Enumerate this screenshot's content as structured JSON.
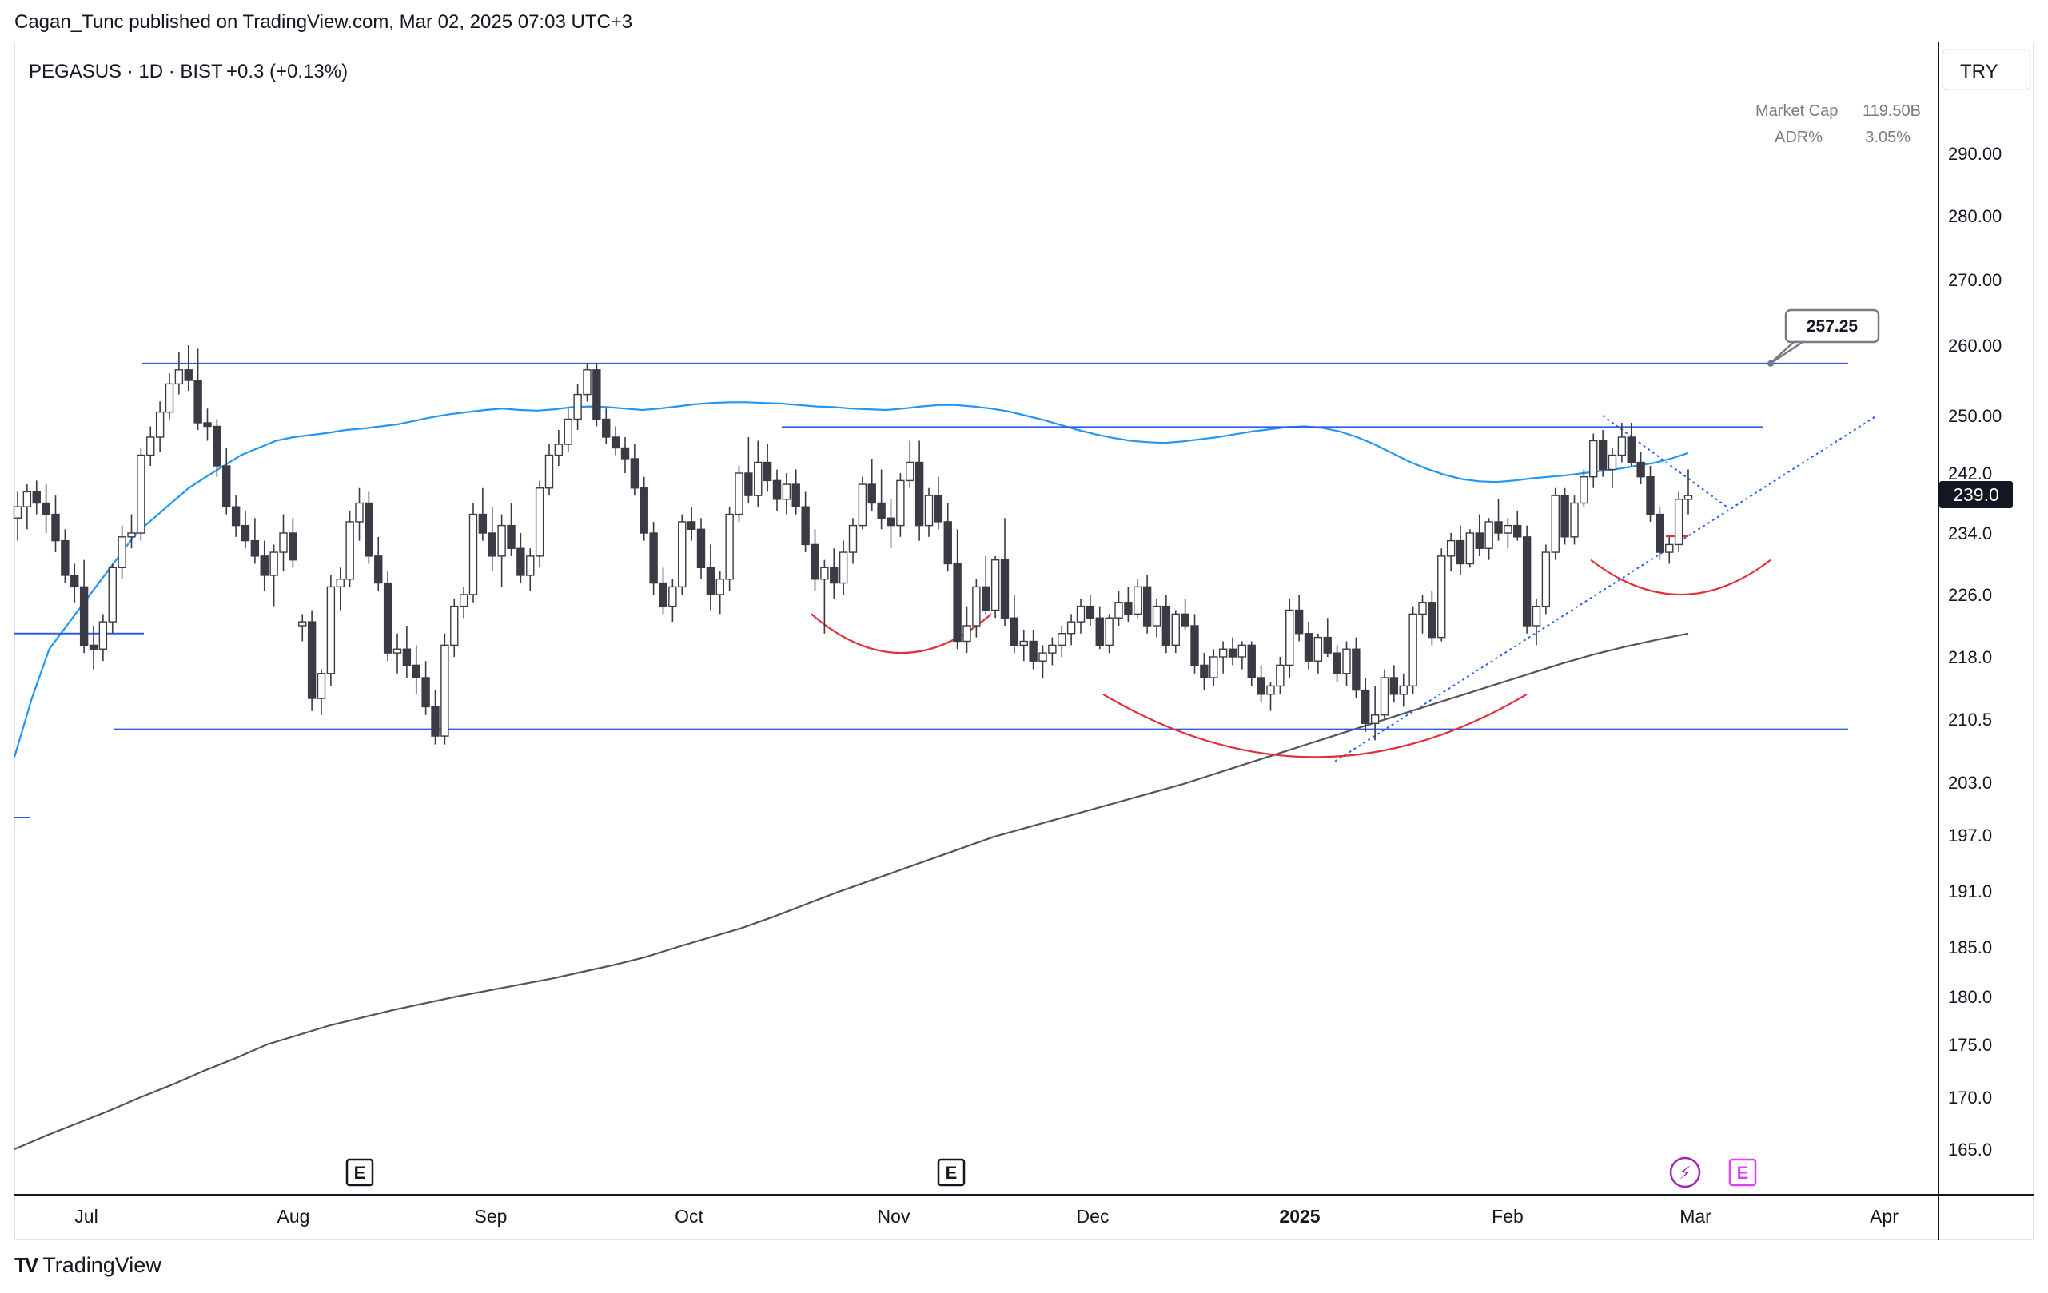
{
  "header": {
    "published_text": "Cagan_Tunc published on TradingView.com, Mar 02, 2025 07:03 UTC+3"
  },
  "footer": {
    "brand": "TradingView",
    "logo_icon": "tradingview-logo-icon"
  },
  "chart_data": {
    "type": "candlestick",
    "title": "PEGASUS · 1D · BIST",
    "change": "+0.3 (+0.13%)",
    "currency": "TRY",
    "info_panel": [
      {
        "label": "Market Cap",
        "value": "119.50B"
      },
      {
        "label": "ADR%",
        "value": "3.05%"
      }
    ],
    "ylim": [
      158,
      306
    ],
    "y_ticks": [
      "165.0",
      "170.0",
      "175.0",
      "180.0",
      "185.0",
      "191.0",
      "197.0",
      "203.0",
      "210.5",
      "218.0",
      "226.0",
      "234.0",
      "242.0",
      "250.00",
      "260.00",
      "270.00",
      "280.00",
      "290.00"
    ],
    "x_ticks": [
      {
        "label": "Jul",
        "bold": false
      },
      {
        "label": "Aug",
        "bold": false
      },
      {
        "label": "Sep",
        "bold": false
      },
      {
        "label": "Oct",
        "bold": false
      },
      {
        "label": "Nov",
        "bold": false
      },
      {
        "label": "Dec",
        "bold": false
      },
      {
        "label": "2025",
        "bold": true
      },
      {
        "label": "Feb",
        "bold": false
      },
      {
        "label": "Mar",
        "bold": false
      },
      {
        "label": "Apr",
        "bold": false
      }
    ],
    "last_price": "239.0",
    "annotation_label": "257.25",
    "colors": {
      "up": "#ffffff",
      "down": "#3b3b45",
      "wick": "#3b3b45",
      "ma_short": "#2196f3",
      "ma_long": "#555555",
      "levels": "#2e5ce6",
      "arcs": "#e0303c",
      "trend": "#2962ff",
      "last_price_bg": "#131722",
      "lightning": "#9c27b0",
      "earnings_future": "#e040fb"
    },
    "horizontal_levels": [
      257.4,
      248.4,
      209.3
    ],
    "event_markers": [
      {
        "label": "E",
        "type": "earnings"
      },
      {
        "label": "E",
        "type": "earnings"
      },
      {
        "label": "⚡",
        "type": "dividend"
      },
      {
        "label": "E",
        "type": "earnings-upcoming"
      }
    ],
    "candles": [
      [
        236.0,
        239.5,
        233.0,
        237.5
      ],
      [
        237.5,
        240.5,
        234.5,
        239.5
      ],
      [
        239.5,
        241.0,
        236.5,
        238.0
      ],
      [
        238.0,
        240.5,
        234.0,
        236.5
      ],
      [
        236.5,
        239.0,
        231.5,
        233.0
      ],
      [
        233.0,
        234.5,
        227.5,
        228.5
      ],
      [
        228.5,
        230.0,
        225.0,
        227.0
      ],
      [
        227.0,
        230.5,
        218.5,
        219.5
      ],
      [
        219.5,
        222.0,
        216.5,
        219.0
      ],
      [
        219.0,
        223.5,
        217.5,
        222.5
      ],
      [
        222.5,
        230.0,
        221.0,
        229.5
      ],
      [
        229.5,
        235.0,
        228.0,
        233.5
      ],
      [
        233.5,
        236.5,
        232.0,
        234.0
      ],
      [
        234.0,
        245.5,
        233.0,
        244.5
      ],
      [
        244.5,
        248.5,
        243.0,
        247.0
      ],
      [
        247.0,
        252.0,
        245.0,
        250.5
      ],
      [
        250.5,
        256.0,
        249.5,
        254.5
      ],
      [
        254.5,
        259.0,
        253.0,
        256.5
      ],
      [
        256.5,
        260.0,
        253.5,
        255.0
      ],
      [
        255.0,
        259.5,
        248.0,
        249.0
      ],
      [
        249.0,
        251.0,
        246.5,
        248.5
      ],
      [
        248.5,
        249.5,
        241.5,
        243.0
      ],
      [
        243.0,
        245.5,
        236.5,
        237.5
      ],
      [
        237.5,
        239.0,
        233.5,
        235.0
      ],
      [
        235.0,
        237.0,
        232.0,
        233.0
      ],
      [
        233.0,
        236.0,
        230.0,
        231.0
      ],
      [
        231.0,
        233.0,
        226.5,
        228.5
      ],
      [
        228.5,
        232.5,
        224.5,
        231.5
      ],
      [
        231.5,
        236.5,
        229.0,
        234.0
      ],
      [
        234.0,
        236.0,
        229.5,
        230.5
      ],
      [
        222.0,
        223.5,
        220.0,
        222.5
      ],
      [
        222.5,
        224.0,
        211.5,
        213.0
      ],
      [
        213.0,
        216.5,
        211.0,
        216.0
      ],
      [
        216.0,
        228.5,
        214.5,
        227.0
      ],
      [
        227.0,
        229.5,
        224.0,
        228.0
      ],
      [
        228.0,
        237.0,
        227.0,
        235.5
      ],
      [
        235.5,
        240.0,
        233.0,
        238.0
      ],
      [
        238.0,
        239.5,
        230.0,
        231.0
      ],
      [
        231.0,
        233.5,
        226.5,
        227.5
      ],
      [
        227.5,
        229.0,
        217.5,
        218.5
      ],
      [
        218.5,
        221.0,
        216.0,
        219.0
      ],
      [
        219.0,
        222.0,
        215.5,
        217.0
      ],
      [
        217.0,
        219.5,
        213.5,
        215.5
      ],
      [
        215.5,
        217.5,
        211.0,
        212.0
      ],
      [
        212.0,
        214.0,
        207.5,
        208.5
      ],
      [
        208.5,
        221.0,
        207.5,
        219.5
      ],
      [
        219.5,
        225.5,
        218.0,
        224.5
      ],
      [
        224.5,
        227.0,
        223.0,
        226.0
      ],
      [
        226.0,
        238.0,
        225.0,
        236.5
      ],
      [
        236.5,
        240.0,
        233.0,
        234.0
      ],
      [
        234.0,
        237.5,
        229.0,
        231.0
      ],
      [
        231.0,
        236.5,
        227.0,
        235.0
      ],
      [
        235.0,
        238.0,
        231.0,
        232.0
      ],
      [
        232.0,
        234.0,
        227.5,
        228.5
      ],
      [
        228.5,
        232.0,
        226.5,
        231.0
      ],
      [
        231.0,
        241.0,
        229.5,
        240.0
      ],
      [
        240.0,
        246.0,
        239.0,
        244.5
      ],
      [
        244.5,
        248.0,
        243.0,
        246.0
      ],
      [
        246.0,
        251.0,
        245.0,
        249.5
      ],
      [
        249.5,
        254.5,
        248.0,
        253.0
      ],
      [
        253.0,
        257.5,
        252.0,
        256.5
      ],
      [
        256.5,
        257.5,
        248.5,
        249.5
      ],
      [
        249.5,
        251.0,
        246.0,
        247.0
      ],
      [
        247.0,
        248.5,
        244.5,
        245.5
      ],
      [
        245.5,
        247.0,
        242.0,
        244.0
      ],
      [
        244.0,
        246.0,
        239.0,
        240.0
      ],
      [
        240.0,
        241.5,
        233.0,
        234.0
      ],
      [
        234.0,
        235.5,
        226.0,
        227.5
      ],
      [
        227.5,
        229.5,
        223.5,
        224.5
      ],
      [
        224.5,
        228.0,
        222.5,
        227.0
      ],
      [
        227.0,
        236.5,
        226.0,
        235.5
      ],
      [
        235.5,
        237.5,
        233.0,
        234.5
      ],
      [
        234.5,
        236.0,
        228.0,
        229.5
      ],
      [
        229.5,
        232.5,
        224.0,
        226.0
      ],
      [
        226.0,
        229.0,
        223.5,
        228.0
      ],
      [
        228.0,
        237.5,
        226.5,
        236.5
      ],
      [
        236.5,
        243.0,
        235.5,
        242.0
      ],
      [
        242.0,
        247.0,
        238.0,
        239.0
      ],
      [
        239.0,
        246.5,
        237.5,
        243.5
      ],
      [
        243.5,
        246.0,
        239.5,
        241.0
      ],
      [
        241.0,
        242.5,
        237.0,
        238.5
      ],
      [
        238.5,
        242.0,
        236.5,
        240.5
      ],
      [
        240.5,
        242.5,
        236.5,
        237.5
      ],
      [
        237.5,
        239.5,
        231.5,
        232.5
      ],
      [
        232.5,
        234.5,
        226.5,
        228.0
      ],
      [
        228.0,
        230.5,
        221.0,
        229.5
      ],
      [
        229.5,
        232.0,
        225.5,
        227.5
      ],
      [
        227.5,
        233.0,
        226.0,
        231.5
      ],
      [
        231.5,
        236.0,
        230.0,
        235.0
      ],
      [
        235.0,
        241.5,
        234.5,
        240.5
      ],
      [
        240.5,
        244.0,
        237.0,
        238.0
      ],
      [
        238.0,
        242.5,
        234.5,
        236.0
      ],
      [
        236.0,
        238.5,
        232.0,
        235.0
      ],
      [
        235.0,
        242.0,
        233.5,
        241.0
      ],
      [
        241.0,
        246.5,
        240.0,
        243.5
      ],
      [
        243.5,
        246.5,
        233.0,
        235.0
      ],
      [
        235.0,
        240.0,
        233.5,
        239.0
      ],
      [
        239.0,
        241.5,
        234.5,
        235.5
      ],
      [
        235.5,
        238.0,
        229.0,
        230.0
      ],
      [
        230.0,
        234.5,
        219.0,
        220.0
      ],
      [
        220.0,
        224.5,
        218.5,
        222.0
      ],
      [
        222.0,
        228.0,
        220.5,
        227.0
      ],
      [
        227.0,
        231.0,
        223.5,
        224.0
      ],
      [
        224.0,
        231.0,
        223.0,
        230.5
      ],
      [
        230.5,
        236.0,
        222.0,
        223.0
      ],
      [
        223.0,
        226.0,
        218.5,
        219.5
      ],
      [
        219.5,
        221.5,
        217.5,
        220.0
      ],
      [
        220.0,
        221.5,
        216.5,
        217.5
      ],
      [
        217.5,
        219.5,
        215.5,
        218.5
      ],
      [
        218.5,
        220.5,
        217.0,
        219.5
      ],
      [
        219.5,
        222.0,
        218.0,
        221.0
      ],
      [
        221.0,
        223.5,
        219.5,
        222.5
      ],
      [
        222.5,
        225.5,
        221.0,
        224.5
      ],
      [
        224.5,
        226.0,
        222.0,
        223.0
      ],
      [
        223.0,
        224.5,
        219.0,
        219.5
      ],
      [
        219.5,
        223.5,
        218.5,
        223.0
      ],
      [
        223.0,
        226.5,
        222.0,
        225.0
      ],
      [
        225.0,
        227.0,
        222.5,
        223.5
      ],
      [
        223.5,
        228.0,
        223.0,
        227.0
      ],
      [
        227.0,
        228.5,
        221.0,
        222.0
      ],
      [
        222.0,
        225.5,
        220.5,
        224.5
      ],
      [
        224.5,
        226.0,
        218.5,
        219.5
      ],
      [
        219.5,
        224.0,
        218.5,
        223.5
      ],
      [
        223.5,
        225.5,
        221.5,
        222.0
      ],
      [
        222.0,
        223.5,
        216.0,
        217.0
      ],
      [
        217.0,
        218.5,
        214.0,
        215.5
      ],
      [
        215.5,
        219.0,
        214.5,
        218.0
      ],
      [
        218.0,
        220.0,
        216.0,
        219.0
      ],
      [
        219.0,
        220.5,
        217.0,
        218.0
      ],
      [
        218.0,
        220.0,
        216.5,
        219.5
      ],
      [
        219.5,
        220.0,
        214.5,
        215.5
      ],
      [
        215.5,
        217.0,
        212.5,
        213.5
      ],
      [
        213.5,
        215.0,
        211.5,
        214.5
      ],
      [
        214.5,
        218.0,
        213.5,
        217.0
      ],
      [
        217.0,
        225.5,
        215.5,
        224.0
      ],
      [
        224.0,
        226.0,
        220.0,
        221.0
      ],
      [
        221.0,
        222.5,
        216.5,
        217.5
      ],
      [
        217.5,
        221.0,
        216.0,
        220.5
      ],
      [
        220.5,
        223.0,
        218.0,
        218.5
      ],
      [
        218.5,
        219.5,
        215.0,
        216.0
      ],
      [
        216.0,
        220.0,
        214.5,
        219.0
      ],
      [
        219.0,
        220.5,
        213.0,
        214.0
      ],
      [
        214.0,
        215.5,
        209.0,
        210.0
      ],
      [
        210.0,
        214.5,
        208.0,
        211.0
      ],
      [
        211.0,
        216.5,
        210.5,
        215.5
      ],
      [
        215.5,
        217.0,
        212.5,
        213.5
      ],
      [
        213.5,
        216.0,
        212.0,
        214.5
      ],
      [
        214.5,
        224.5,
        213.5,
        223.5
      ],
      [
        223.5,
        226.0,
        221.0,
        225.0
      ],
      [
        225.0,
        226.5,
        219.5,
        220.5
      ],
      [
        220.5,
        232.0,
        220.0,
        231.0
      ],
      [
        231.0,
        234.0,
        229.0,
        233.0
      ],
      [
        233.0,
        235.0,
        228.5,
        230.0
      ],
      [
        230.0,
        234.5,
        229.5,
        234.0
      ],
      [
        234.0,
        236.5,
        231.0,
        232.0
      ],
      [
        232.0,
        236.0,
        230.5,
        235.5
      ],
      [
        235.5,
        238.5,
        233.0,
        234.0
      ],
      [
        234.0,
        236.0,
        232.0,
        235.0
      ],
      [
        235.0,
        237.0,
        233.0,
        233.5
      ],
      [
        233.5,
        235.0,
        221.0,
        222.0
      ],
      [
        222.0,
        225.5,
        219.5,
        224.5
      ],
      [
        224.5,
        232.5,
        223.5,
        231.5
      ],
      [
        231.5,
        240.0,
        230.5,
        239.0
      ],
      [
        239.0,
        240.0,
        232.5,
        233.5
      ],
      [
        233.5,
        239.0,
        232.5,
        238.0
      ],
      [
        238.0,
        242.5,
        237.5,
        241.5
      ],
      [
        241.5,
        247.5,
        240.0,
        246.5
      ],
      [
        246.5,
        248.0,
        241.5,
        242.5
      ],
      [
        242.5,
        245.5,
        240.0,
        244.5
      ],
      [
        244.5,
        249.0,
        243.5,
        247.0
      ],
      [
        247.0,
        249.0,
        243.0,
        243.5
      ],
      [
        243.5,
        245.0,
        240.5,
        241.5
      ],
      [
        241.5,
        243.0,
        235.5,
        236.5
      ],
      [
        236.5,
        237.5,
        230.5,
        231.5
      ],
      [
        231.5,
        233.5,
        230.0,
        232.5
      ],
      [
        232.5,
        239.5,
        231.5,
        238.5
      ],
      [
        238.5,
        242.5,
        236.5,
        239.0
      ]
    ],
    "ma_short_values": [
      206,
      213,
      219,
      222,
      225,
      228,
      231,
      234,
      236,
      238,
      240,
      241.5,
      243,
      244.5,
      245.5,
      246.5,
      247,
      247.3,
      247.6,
      248,
      248.2,
      248.5,
      248.8,
      249.3,
      249.8,
      250.2,
      250.5,
      250.8,
      251,
      250.8,
      250.7,
      250.9,
      251.2,
      251.3,
      251.2,
      251,
      250.8,
      251,
      251.3,
      251.6,
      251.8,
      251.9,
      251.9,
      251.8,
      251.7,
      251.5,
      251.3,
      251.2,
      251,
      250.9,
      250.8,
      251,
      251.3,
      251.5,
      251.5,
      251.3,
      251,
      250.6,
      250,
      249.4,
      248.7,
      248,
      247.4,
      246.9,
      246.5,
      246.3,
      246.2,
      246.4,
      246.7,
      247,
      247.4,
      247.8,
      248.1,
      248.4,
      248.5,
      248.3,
      247.8,
      247,
      246,
      244.8,
      243.6,
      242.6,
      241.8,
      241.2,
      240.9,
      240.8,
      241,
      241.3,
      241.5,
      241.7,
      242,
      242.3,
      242.6,
      243,
      243.4,
      244,
      244.8
    ],
    "ma_long_values": [
      165,
      166.3,
      167.5,
      168.7,
      170,
      171.2,
      172.5,
      173.7,
      175,
      176,
      177,
      177.8,
      178.6,
      179.3,
      180,
      180.6,
      181.2,
      181.8,
      182.5,
      183.2,
      184,
      185,
      186,
      187,
      188.2,
      189.5,
      190.8,
      192,
      193.2,
      194.4,
      195.6,
      196.8,
      197.8,
      198.8,
      199.8,
      200.8,
      201.8,
      202.8,
      204,
      205.2,
      206.4,
      207.6,
      208.8,
      210,
      211.2,
      212.4,
      213.6,
      214.8,
      216,
      217.2,
      218.3,
      219.3,
      220.2,
      221
    ]
  }
}
